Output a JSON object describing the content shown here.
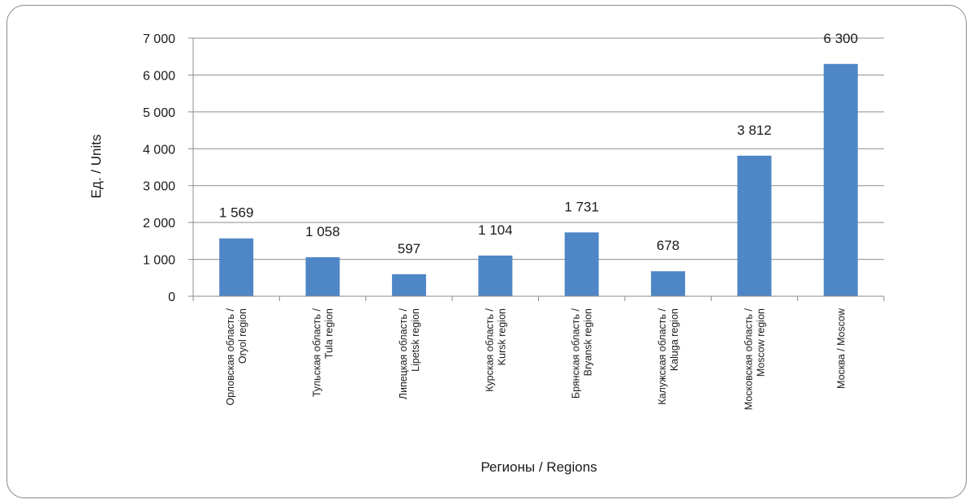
{
  "chart_data": {
    "type": "bar",
    "xlabel": "Регионы / Regions",
    "ylabel": "Ед. / Units",
    "ylim": [
      0,
      7000
    ],
    "yticks": [
      0,
      1000,
      2000,
      3000,
      4000,
      5000,
      6000,
      7000
    ],
    "ytick_labels": [
      "0",
      "1 000",
      "2 000",
      "3 000",
      "4 000",
      "5 000",
      "6 000",
      "7 000"
    ],
    "grid": true,
    "legend": "none",
    "bar_color": "#4f86c6",
    "categories": [
      [
        "Орловская область /",
        "Oryol region"
      ],
      [
        "Тульская область /",
        "Tula region"
      ],
      [
        "Липецкая область /",
        "Lipetsk region"
      ],
      [
        "Курская область /",
        "Kursk region"
      ],
      [
        "Брянская область /",
        "Bryansk region"
      ],
      [
        "Калужская область /",
        "Kaluga region"
      ],
      [
        "Московская область /",
        "Moscow region"
      ],
      [
        "Москва / Moscow"
      ]
    ],
    "values": [
      1569,
      1058,
      597,
      1104,
      1731,
      678,
      3812,
      6300
    ],
    "value_labels": [
      "1 569",
      "1 058",
      "597",
      "1 104",
      "1 731",
      "678",
      "3 812",
      "6 300"
    ]
  }
}
